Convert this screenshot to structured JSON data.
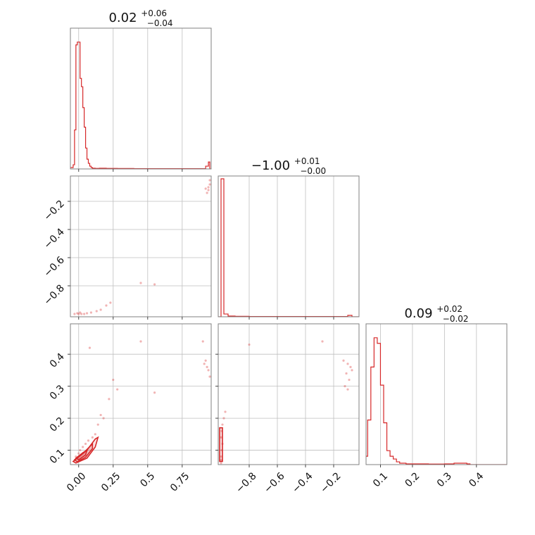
{
  "chart_data": {
    "type": "corner",
    "color": "#d62728",
    "panels": [
      {
        "id": "hist-p0",
        "type": "histogram",
        "param": 0,
        "title": {
          "value": "0.02",
          "plus": "+0.06",
          "minus": "−0.04"
        },
        "xlim": [
          -0.06,
          0.96
        ],
        "xticks": [
          0.0,
          0.25,
          0.5,
          0.75
        ],
        "bins": [
          [
            -0.06,
            0.01
          ],
          [
            -0.05,
            0.01
          ],
          [
            -0.04,
            0.03
          ],
          [
            -0.03,
            0.28
          ],
          [
            -0.02,
            0.89
          ],
          [
            -0.01,
            0.91
          ],
          [
            0.0,
            0.91
          ],
          [
            0.01,
            0.65
          ],
          [
            0.02,
            0.59
          ],
          [
            0.03,
            0.44
          ],
          [
            0.04,
            0.3
          ],
          [
            0.05,
            0.15
          ],
          [
            0.06,
            0.07
          ],
          [
            0.07,
            0.04
          ],
          [
            0.08,
            0.02
          ],
          [
            0.09,
            0.01
          ],
          [
            0.1,
            0.005
          ],
          [
            0.12,
            0.004
          ],
          [
            0.15,
            0.005
          ],
          [
            0.2,
            0.004
          ],
          [
            0.28,
            0.003
          ],
          [
            0.4,
            0.002
          ],
          [
            0.6,
            0.002
          ],
          [
            0.8,
            0.002
          ],
          [
            0.92,
            0.02
          ],
          [
            0.94,
            0.05
          ],
          [
            0.95,
            0.0
          ]
        ]
      },
      {
        "id": "scatter-p1-vs-p0",
        "type": "scatter2d",
        "xparam": 0,
        "yparam": 1,
        "xlim": [
          -0.06,
          0.96
        ],
        "ylim": [
          -1.02,
          -0.02
        ],
        "yticks": [
          -0.8,
          -0.6,
          -0.4,
          -0.2
        ],
        "points": [
          [
            -0.03,
            -1.0
          ],
          [
            -0.01,
            -0.995
          ],
          [
            0.0,
            -1.0
          ],
          [
            0.01,
            -0.99
          ],
          [
            0.02,
            -1.0
          ],
          [
            0.04,
            -1.0
          ],
          [
            0.06,
            -0.995
          ],
          [
            0.09,
            -0.99
          ],
          [
            0.13,
            -0.98
          ],
          [
            0.16,
            -0.97
          ],
          [
            0.2,
            -0.94
          ],
          [
            0.23,
            -0.92
          ],
          [
            0.45,
            -0.78
          ],
          [
            0.55,
            -0.79
          ],
          [
            0.93,
            -0.14
          ],
          [
            0.94,
            -0.1
          ],
          [
            0.95,
            -0.08
          ],
          [
            0.92,
            -0.11
          ],
          [
            0.94,
            -0.12
          ],
          [
            0.95,
            -0.05
          ]
        ]
      },
      {
        "id": "hist-p1",
        "type": "histogram",
        "param": 1,
        "title": {
          "value": "−1.00",
          "plus": "+0.01",
          "minus": "−0.00"
        },
        "xlim": [
          -1.02,
          -0.02
        ],
        "bins": [
          [
            -1.02,
            0.0
          ],
          [
            -1.0,
            0.99
          ],
          [
            -0.98,
            0.02
          ],
          [
            -0.95,
            0.005
          ],
          [
            -0.9,
            0.003
          ],
          [
            -0.8,
            0.002
          ],
          [
            -0.6,
            0.002
          ],
          [
            -0.4,
            0.002
          ],
          [
            -0.2,
            0.002
          ],
          [
            -0.1,
            0.01
          ],
          [
            -0.07,
            0.0
          ]
        ]
      },
      {
        "id": "scatter-p2-vs-p0",
        "type": "scatter2d",
        "xparam": 0,
        "yparam": 2,
        "xlim": [
          -0.06,
          0.96
        ],
        "ylim": [
          0.055,
          0.495
        ],
        "xticks": [
          0.0,
          0.25,
          0.5,
          0.75
        ],
        "yticks": [
          0.1,
          0.2,
          0.3,
          0.4
        ],
        "points": [
          [
            -0.02,
            0.08
          ],
          [
            0.0,
            0.09
          ],
          [
            0.01,
            0.1
          ],
          [
            0.03,
            0.11
          ],
          [
            0.05,
            0.12
          ],
          [
            0.07,
            0.13
          ],
          [
            0.1,
            0.14
          ],
          [
            0.12,
            0.15
          ],
          [
            0.02,
            0.07
          ],
          [
            0.06,
            0.1
          ],
          [
            0.14,
            0.18
          ],
          [
            0.16,
            0.21
          ],
          [
            0.18,
            0.2
          ],
          [
            0.22,
            0.26
          ],
          [
            0.25,
            0.32
          ],
          [
            0.28,
            0.29
          ],
          [
            0.45,
            0.44
          ],
          [
            0.55,
            0.28
          ],
          [
            0.08,
            0.42
          ],
          [
            0.92,
            0.38
          ],
          [
            0.93,
            0.36
          ],
          [
            0.94,
            0.35
          ],
          [
            0.95,
            0.33
          ],
          [
            0.91,
            0.37
          ],
          [
            0.9,
            0.44
          ]
        ],
        "contours": [
          [
            [
              -0.04,
              0.065
            ],
            [
              0.06,
              0.1
            ],
            [
              0.12,
              0.135
            ],
            [
              0.14,
              0.14
            ],
            [
              0.12,
              0.11
            ],
            [
              0.06,
              0.075
            ],
            [
              -0.02,
              0.06
            ],
            [
              -0.04,
              0.065
            ]
          ],
          [
            [
              -0.03,
              0.07
            ],
            [
              0.05,
              0.098
            ],
            [
              0.1,
              0.12
            ],
            [
              0.1,
              0.105
            ],
            [
              0.05,
              0.078
            ],
            [
              -0.01,
              0.064
            ],
            [
              -0.03,
              0.07
            ]
          ],
          [
            [
              -0.02,
              0.075
            ],
            [
              0.03,
              0.092
            ],
            [
              0.06,
              0.1
            ],
            [
              0.05,
              0.085
            ],
            [
              0.0,
              0.07
            ],
            [
              -0.02,
              0.075
            ]
          ]
        ]
      },
      {
        "id": "scatter-p2-vs-p1",
        "type": "scatter2d",
        "xparam": 1,
        "yparam": 2,
        "xlim": [
          -1.02,
          -0.02
        ],
        "ylim": [
          0.055,
          0.495
        ],
        "xticks": [
          -0.8,
          -0.6,
          -0.4,
          -0.2
        ],
        "points": [
          [
            -1.0,
            0.06
          ],
          [
            -1.0,
            0.08
          ],
          [
            -0.995,
            0.1
          ],
          [
            -0.99,
            0.12
          ],
          [
            -1.0,
            0.14
          ],
          [
            -0.995,
            0.16
          ],
          [
            -0.99,
            0.18
          ],
          [
            -0.98,
            0.2
          ],
          [
            -0.97,
            0.22
          ],
          [
            -1.0,
            0.07
          ],
          [
            -0.8,
            0.43
          ],
          [
            -0.28,
            0.44
          ],
          [
            -0.13,
            0.38
          ],
          [
            -0.1,
            0.37
          ],
          [
            -0.08,
            0.36
          ],
          [
            -0.11,
            0.34
          ],
          [
            -0.09,
            0.32
          ],
          [
            -0.12,
            0.3
          ],
          [
            -0.07,
            0.35
          ],
          [
            -0.1,
            0.29
          ]
        ],
        "contours": [
          [
            [
              -1.01,
              0.065
            ],
            [
              -0.99,
              0.065
            ],
            [
              -0.99,
              0.17
            ],
            [
              -1.01,
              0.17
            ],
            [
              -1.01,
              0.065
            ]
          ]
        ]
      },
      {
        "id": "hist-p2",
        "type": "histogram",
        "param": 2,
        "title": {
          "value": "0.09",
          "plus": "+0.02",
          "minus": "−0.02"
        },
        "xlim": [
          0.055,
          0.495
        ],
        "xticks": [
          0.1,
          0.2,
          0.3,
          0.4
        ],
        "bins": [
          [
            0.055,
            0.06
          ],
          [
            0.06,
            0.32
          ],
          [
            0.07,
            0.7
          ],
          [
            0.08,
            0.91
          ],
          [
            0.09,
            0.87
          ],
          [
            0.1,
            0.57
          ],
          [
            0.11,
            0.3
          ],
          [
            0.12,
            0.1
          ],
          [
            0.13,
            0.06
          ],
          [
            0.14,
            0.04
          ],
          [
            0.15,
            0.02
          ],
          [
            0.16,
            0.01
          ],
          [
            0.18,
            0.005
          ],
          [
            0.2,
            0.005
          ],
          [
            0.25,
            0.004
          ],
          [
            0.3,
            0.005
          ],
          [
            0.33,
            0.01
          ],
          [
            0.37,
            0.005
          ],
          [
            0.38,
            0.0
          ]
        ]
      }
    ]
  }
}
